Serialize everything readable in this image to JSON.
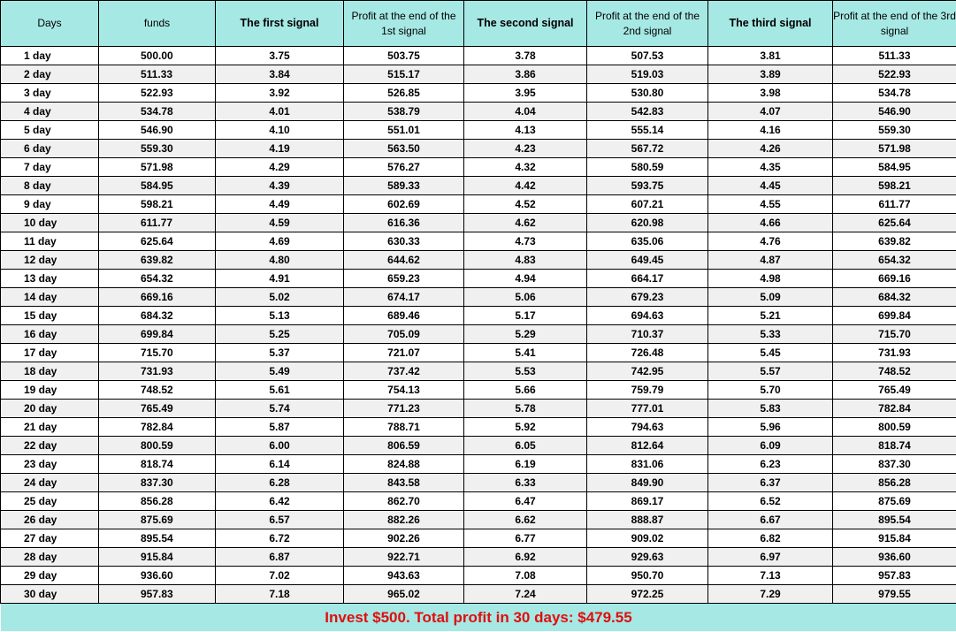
{
  "headers": [
    "Days",
    "funds",
    "The first signal",
    "Profit at the end of the 1st signal",
    "The second signal",
    "Profit at the end of the 2nd signal",
    "The third signal",
    "Profit at the end of the 3rd signal"
  ],
  "rows": [
    [
      "1 day",
      "500.00",
      "3.75",
      "503.75",
      "3.78",
      "507.53",
      "3.81",
      "511.33"
    ],
    [
      "2 day",
      "511.33",
      "3.84",
      "515.17",
      "3.86",
      "519.03",
      "3.89",
      "522.93"
    ],
    [
      "3 day",
      "522.93",
      "3.92",
      "526.85",
      "3.95",
      "530.80",
      "3.98",
      "534.78"
    ],
    [
      "4 day",
      "534.78",
      "4.01",
      "538.79",
      "4.04",
      "542.83",
      "4.07",
      "546.90"
    ],
    [
      "5 day",
      "546.90",
      "4.10",
      "551.01",
      "4.13",
      "555.14",
      "4.16",
      "559.30"
    ],
    [
      "6 day",
      "559.30",
      "4.19",
      "563.50",
      "4.23",
      "567.72",
      "4.26",
      "571.98"
    ],
    [
      "7 day",
      "571.98",
      "4.29",
      "576.27",
      "4.32",
      "580.59",
      "4.35",
      "584.95"
    ],
    [
      "8 day",
      "584.95",
      "4.39",
      "589.33",
      "4.42",
      "593.75",
      "4.45",
      "598.21"
    ],
    [
      "9 day",
      "598.21",
      "4.49",
      "602.69",
      "4.52",
      "607.21",
      "4.55",
      "611.77"
    ],
    [
      "10 day",
      "611.77",
      "4.59",
      "616.36",
      "4.62",
      "620.98",
      "4.66",
      "625.64"
    ],
    [
      "11 day",
      "625.64",
      "4.69",
      "630.33",
      "4.73",
      "635.06",
      "4.76",
      "639.82"
    ],
    [
      "12 day",
      "639.82",
      "4.80",
      "644.62",
      "4.83",
      "649.45",
      "4.87",
      "654.32"
    ],
    [
      "13 day",
      "654.32",
      "4.91",
      "659.23",
      "4.94",
      "664.17",
      "4.98",
      "669.16"
    ],
    [
      "14 day",
      "669.16",
      "5.02",
      "674.17",
      "5.06",
      "679.23",
      "5.09",
      "684.32"
    ],
    [
      "15 day",
      "684.32",
      "5.13",
      "689.46",
      "5.17",
      "694.63",
      "5.21",
      "699.84"
    ],
    [
      "16 day",
      "699.84",
      "5.25",
      "705.09",
      "5.29",
      "710.37",
      "5.33",
      "715.70"
    ],
    [
      "17 day",
      "715.70",
      "5.37",
      "721.07",
      "5.41",
      "726.48",
      "5.45",
      "731.93"
    ],
    [
      "18 day",
      "731.93",
      "5.49",
      "737.42",
      "5.53",
      "742.95",
      "5.57",
      "748.52"
    ],
    [
      "19 day",
      "748.52",
      "5.61",
      "754.13",
      "5.66",
      "759.79",
      "5.70",
      "765.49"
    ],
    [
      "20 day",
      "765.49",
      "5.74",
      "771.23",
      "5.78",
      "777.01",
      "5.83",
      "782.84"
    ],
    [
      "21 day",
      "782.84",
      "5.87",
      "788.71",
      "5.92",
      "794.63",
      "5.96",
      "800.59"
    ],
    [
      "22 day",
      "800.59",
      "6.00",
      "806.59",
      "6.05",
      "812.64",
      "6.09",
      "818.74"
    ],
    [
      "23 day",
      "818.74",
      "6.14",
      "824.88",
      "6.19",
      "831.06",
      "6.23",
      "837.30"
    ],
    [
      "24 day",
      "837.30",
      "6.28",
      "843.58",
      "6.33",
      "849.90",
      "6.37",
      "856.28"
    ],
    [
      "25 day",
      "856.28",
      "6.42",
      "862.70",
      "6.47",
      "869.17",
      "6.52",
      "875.69"
    ],
    [
      "26 day",
      "875.69",
      "6.57",
      "882.26",
      "6.62",
      "888.87",
      "6.67",
      "895.54"
    ],
    [
      "27 day",
      "895.54",
      "6.72",
      "902.26",
      "6.77",
      "909.02",
      "6.82",
      "915.84"
    ],
    [
      "28 day",
      "915.84",
      "6.87",
      "922.71",
      "6.92",
      "929.63",
      "6.97",
      "936.60"
    ],
    [
      "29 day",
      "936.60",
      "7.02",
      "943.63",
      "7.08",
      "950.70",
      "7.13",
      "957.83"
    ],
    [
      "30 day",
      "957.83",
      "7.18",
      "965.02",
      "7.24",
      "972.25",
      "7.29",
      "979.55"
    ]
  ],
  "footer": "Invest $500. Total profit in 30 days: $479.55",
  "colors": {
    "header_bg": "#a6e8e4",
    "footer_text": "#e10e0e",
    "stripe_row": "#f0f0f0"
  }
}
